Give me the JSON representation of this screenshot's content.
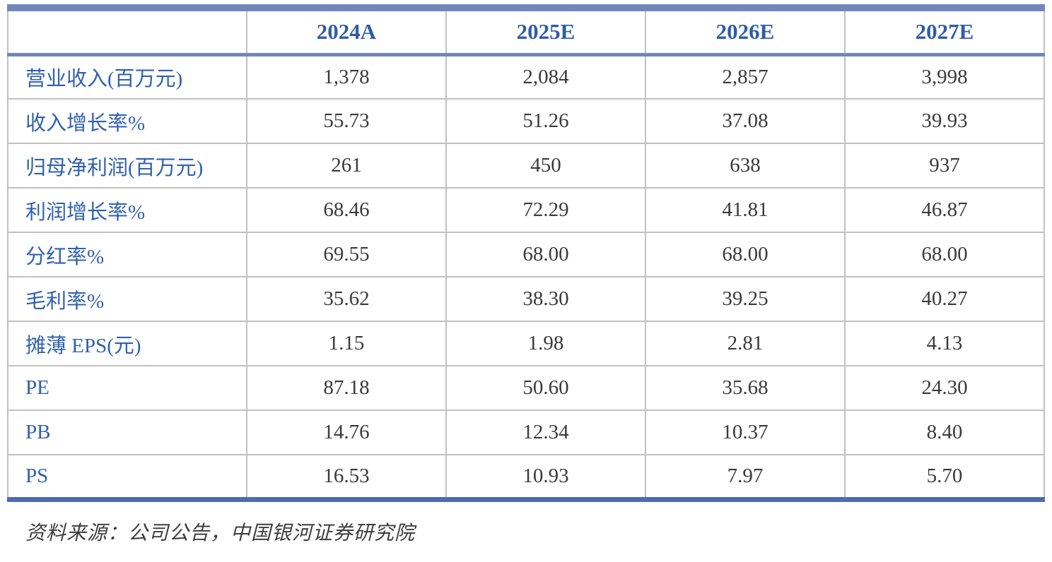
{
  "table": {
    "header": [
      "",
      "2024A",
      "2025E",
      "2026E",
      "2027E"
    ],
    "rows": [
      {
        "label": "营业收入(百万元)",
        "values": [
          "1,378",
          "2,084",
          "2,857",
          "3,998"
        ]
      },
      {
        "label": "收入增长率%",
        "values": [
          "55.73",
          "51.26",
          "37.08",
          "39.93"
        ]
      },
      {
        "label": "归母净利润(百万元)",
        "values": [
          "261",
          "450",
          "638",
          "937"
        ]
      },
      {
        "label": "利润增长率%",
        "values": [
          "68.46",
          "72.29",
          "41.81",
          "46.87"
        ]
      },
      {
        "label": "分红率%",
        "values": [
          "69.55",
          "68.00",
          "68.00",
          "68.00"
        ]
      },
      {
        "label": "毛利率%",
        "values": [
          "35.62",
          "38.30",
          "39.25",
          "40.27"
        ]
      },
      {
        "label": "摊薄 EPS(元)",
        "values": [
          "1.15",
          "1.98",
          "2.81",
          "4.13"
        ]
      },
      {
        "label": "PE",
        "values": [
          "87.18",
          "50.60",
          "35.68",
          "24.30"
        ]
      },
      {
        "label": "PB",
        "values": [
          "14.76",
          "12.34",
          "10.37",
          "8.40"
        ]
      },
      {
        "label": "PS",
        "values": [
          "16.53",
          "10.93",
          "7.97",
          "5.70"
        ]
      }
    ]
  },
  "footer": {
    "source_note": "资料来源：公司公告，中国银河证券研究院"
  },
  "colors": {
    "top_border_blue": "#7086BC",
    "bottom_border_blue": "#4E6CAD",
    "header_text_blue": "#2E5CA8",
    "row_label_blue": "#3060B0",
    "grid_gray": "#C1C1C1",
    "value_text": "#3A3A3A"
  }
}
